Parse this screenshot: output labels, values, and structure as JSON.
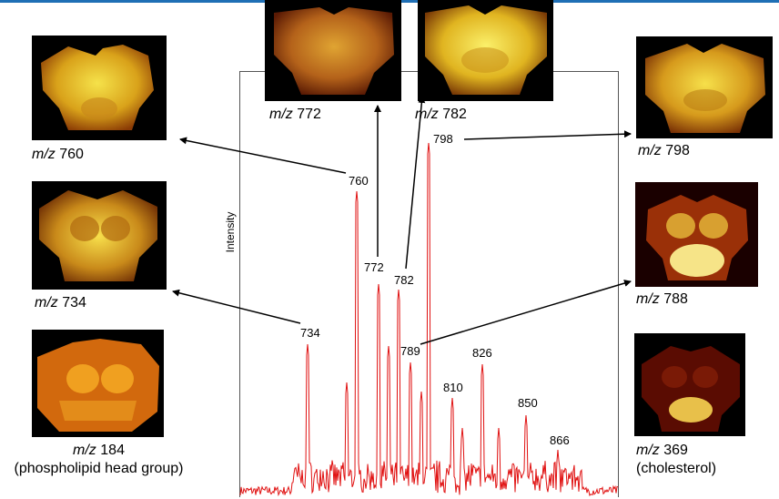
{
  "axis": {
    "ylabel": "Intensity"
  },
  "images": {
    "mz760": {
      "prefix": "m/z",
      "value": "760"
    },
    "mz734": {
      "prefix": "m/z",
      "value": "734"
    },
    "mz184": {
      "prefix": "m/z",
      "value": "184",
      "note": "(phospholipid head group)"
    },
    "mz772": {
      "prefix": "m/z",
      "value": "772"
    },
    "mz782": {
      "prefix": "m/z",
      "value": "782"
    },
    "mz798": {
      "prefix": "m/z",
      "value": "798"
    },
    "mz788": {
      "prefix": "m/z",
      "value": "788"
    },
    "mz369": {
      "prefix": "m/z",
      "value": "369",
      "note": "(cholesterol)"
    }
  },
  "peak_labels": [
    "734",
    "760",
    "772",
    "782",
    "789",
    "798",
    "810",
    "826",
    "850",
    "866"
  ],
  "colors": {
    "spectrum": "#e01010",
    "arrows": "#000000",
    "frame": "#555555",
    "topline": "#1f6fb5"
  }
}
